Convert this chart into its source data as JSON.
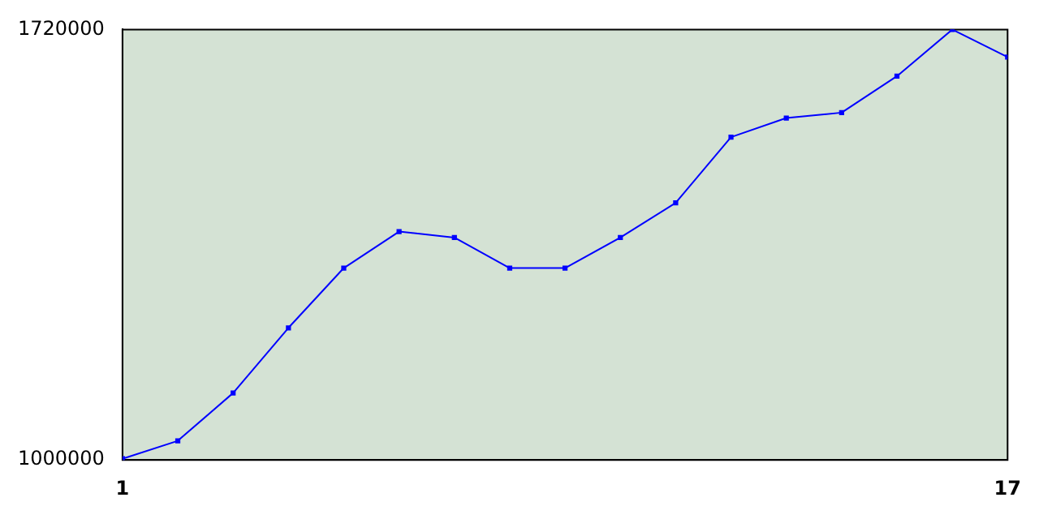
{
  "chart_data": {
    "type": "line",
    "x": [
      1,
      2,
      3,
      4,
      5,
      6,
      7,
      8,
      9,
      10,
      11,
      12,
      13,
      14,
      15,
      16,
      17
    ],
    "series": [
      {
        "color": "#0000ff",
        "values": [
          1002000,
          1032000,
          1112000,
          1221000,
          1321000,
          1382000,
          1372000,
          1321000,
          1321000,
          1372000,
          1430000,
          1540000,
          1572000,
          1581000,
          1642000,
          1720000,
          1674000
        ]
      }
    ],
    "xlim": [
      1,
      17
    ],
    "xticks": [
      1,
      17
    ],
    "ylim": [
      1000000,
      1720000
    ],
    "yticks": [
      1000000,
      1720000
    ],
    "grid": false,
    "legend": false,
    "marker": "square",
    "line_style": "solid"
  }
}
